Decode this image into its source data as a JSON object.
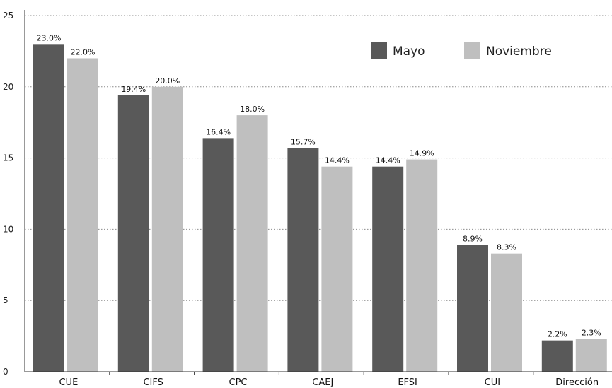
{
  "chart_data": {
    "type": "bar",
    "title": "",
    "xlabel": "",
    "ylabel": "",
    "categories": [
      "CUE",
      "CIFS",
      "CPC",
      "CAEJ",
      "EFSI",
      "CUI",
      "Dirección"
    ],
    "series": [
      {
        "name": "Mayo",
        "color": "#595959",
        "values": [
          23.0,
          19.4,
          16.4,
          15.7,
          14.4,
          8.9,
          2.2
        ],
        "labels": [
          "23.0%",
          "19.4%",
          "16.4%",
          "15.7%",
          "14.4%",
          "8.9%",
          "2.2%"
        ]
      },
      {
        "name": "Noviembre",
        "color": "#bfbfbf",
        "values": [
          22.0,
          20.0,
          18.0,
          14.4,
          14.9,
          8.3,
          2.3
        ],
        "labels": [
          "22.0%",
          "20.0%",
          "18.0%",
          "14.4%",
          "14.9%",
          "8.3%",
          "2.3%"
        ]
      }
    ],
    "ylim": [
      0,
      25
    ],
    "yticks": [
      0,
      5,
      10,
      15,
      20,
      25
    ],
    "ytick_labels": [
      "0",
      "5",
      "10",
      "15",
      "20",
      "25"
    ],
    "grid": "horizontal dotted",
    "legend": "top-right"
  }
}
